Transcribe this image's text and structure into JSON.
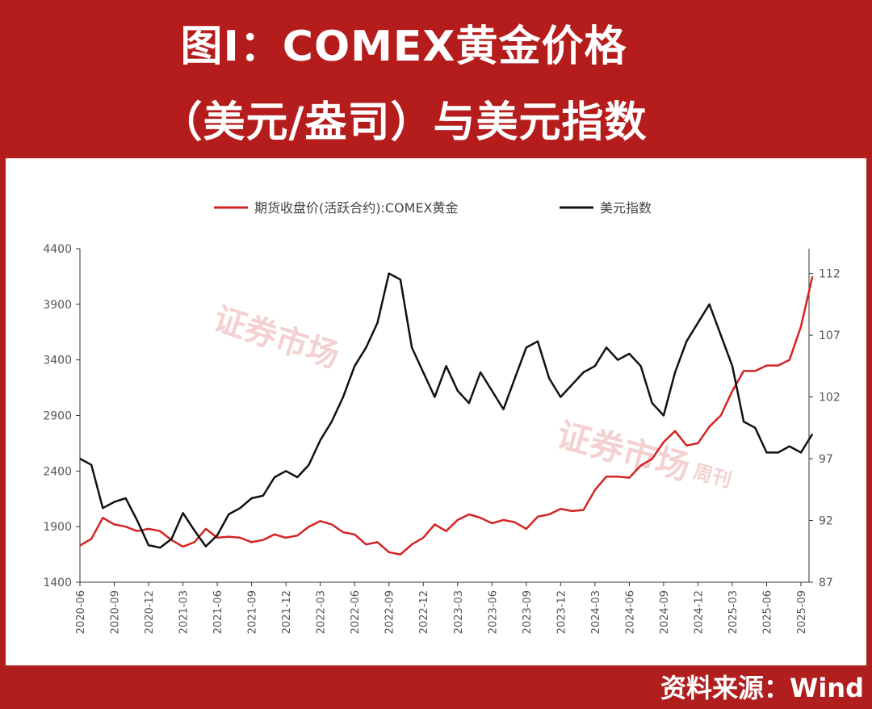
{
  "header": {
    "title_line1": "图I：COMEX黄金价格",
    "title_line2": "（美元/盎司）与美元指数"
  },
  "source": "资料来源：Wind",
  "watermark": {
    "text": "证券市场",
    "suffix": "周刊"
  },
  "colors": {
    "background": "#b51c1c",
    "gold_series": "#d42323",
    "dxy_series": "#111111"
  },
  "chart_data": {
    "type": "line",
    "legend_position": "top-center",
    "x_ticks": [
      "2020-06",
      "2020-09",
      "2020-12",
      "2021-03",
      "2021-06",
      "2021-09",
      "2021-12",
      "2022-03",
      "2022-06",
      "2022-09",
      "2022-12",
      "2023-03",
      "2023-06",
      "2023-09",
      "2023-12",
      "2024-03",
      "2024-06",
      "2024-09",
      "2024-12",
      "2025-03",
      "2025-06",
      "2025-09"
    ],
    "y_left": {
      "ticks": [
        "1400",
        "1900",
        "2400",
        "2900",
        "3400",
        "3900",
        "4400"
      ],
      "range": [
        1400,
        4400
      ]
    },
    "y_right": {
      "ticks": [
        "87",
        "92",
        "97",
        "102",
        "107",
        "112"
      ],
      "range": [
        87,
        114
      ]
    },
    "series": [
      {
        "name": "期货收盘价(活跃合约):COMEX黄金",
        "axis": "left",
        "color": "#d42323",
        "x": [
          "2020-06",
          "2020-07",
          "2020-08",
          "2020-09",
          "2020-10",
          "2020-11",
          "2020-12",
          "2021-01",
          "2021-02",
          "2021-03",
          "2021-04",
          "2021-05",
          "2021-06",
          "2021-07",
          "2021-08",
          "2021-09",
          "2021-10",
          "2021-11",
          "2021-12",
          "2022-01",
          "2022-02",
          "2022-03",
          "2022-04",
          "2022-05",
          "2022-06",
          "2022-07",
          "2022-08",
          "2022-09",
          "2022-10",
          "2022-11",
          "2022-12",
          "2023-01",
          "2023-02",
          "2023-03",
          "2023-04",
          "2023-05",
          "2023-06",
          "2023-07",
          "2023-08",
          "2023-09",
          "2023-10",
          "2023-11",
          "2023-12",
          "2024-01",
          "2024-02",
          "2024-03",
          "2024-04",
          "2024-05",
          "2024-06",
          "2024-07",
          "2024-08",
          "2024-09",
          "2024-10",
          "2024-11",
          "2024-12",
          "2025-01",
          "2025-02",
          "2025-03",
          "2025-04",
          "2025-05",
          "2025-06",
          "2025-07",
          "2025-08",
          "2025-09",
          "2025-10"
        ],
        "values": [
          1730,
          1790,
          1980,
          1920,
          1900,
          1860,
          1880,
          1860,
          1780,
          1720,
          1760,
          1880,
          1800,
          1810,
          1800,
          1760,
          1780,
          1830,
          1800,
          1820,
          1900,
          1950,
          1920,
          1850,
          1830,
          1740,
          1760,
          1670,
          1650,
          1740,
          1800,
          1920,
          1860,
          1960,
          2010,
          1980,
          1930,
          1960,
          1940,
          1880,
          1990,
          2010,
          2060,
          2040,
          2050,
          2230,
          2350,
          2350,
          2340,
          2450,
          2510,
          2660,
          2760,
          2630,
          2650,
          2800,
          2900,
          3120,
          3300,
          3300,
          3350,
          3350,
          3400,
          3700,
          4150
        ]
      },
      {
        "name": "美元指数",
        "axis": "right",
        "color": "#111111",
        "x": [
          "2020-06",
          "2020-07",
          "2020-08",
          "2020-09",
          "2020-10",
          "2020-11",
          "2020-12",
          "2021-01",
          "2021-02",
          "2021-03",
          "2021-04",
          "2021-05",
          "2021-06",
          "2021-07",
          "2021-08",
          "2021-09",
          "2021-10",
          "2021-11",
          "2021-12",
          "2022-01",
          "2022-02",
          "2022-03",
          "2022-04",
          "2022-05",
          "2022-06",
          "2022-07",
          "2022-08",
          "2022-09",
          "2022-10",
          "2022-11",
          "2022-12",
          "2023-01",
          "2023-02",
          "2023-03",
          "2023-04",
          "2023-05",
          "2023-06",
          "2023-07",
          "2023-08",
          "2023-09",
          "2023-10",
          "2023-11",
          "2023-12",
          "2024-01",
          "2024-02",
          "2024-03",
          "2024-04",
          "2024-05",
          "2024-06",
          "2024-07",
          "2024-08",
          "2024-09",
          "2024-10",
          "2024-11",
          "2024-12",
          "2025-01",
          "2025-02",
          "2025-03",
          "2025-04",
          "2025-05",
          "2025-06",
          "2025-07",
          "2025-08",
          "2025-09",
          "2025-10"
        ],
        "values": [
          97,
          96.5,
          93,
          93.5,
          93.8,
          92,
          90,
          89.8,
          90.5,
          92.6,
          91.2,
          89.9,
          90.8,
          92.5,
          93,
          93.8,
          94,
          95.5,
          96,
          95.5,
          96.5,
          98.5,
          100,
          102,
          104.5,
          106,
          108,
          112,
          111.5,
          106,
          104,
          102,
          104.5,
          102.5,
          101.5,
          104,
          102.5,
          101,
          103.5,
          106,
          106.5,
          103.5,
          102,
          103,
          104,
          104.5,
          106,
          105,
          105.5,
          104.5,
          101.5,
          100.5,
          104,
          106.5,
          108,
          109.5,
          107,
          104.5,
          100,
          99.5,
          97.5,
          97.5,
          98,
          97.5,
          99
        ]
      }
    ]
  }
}
